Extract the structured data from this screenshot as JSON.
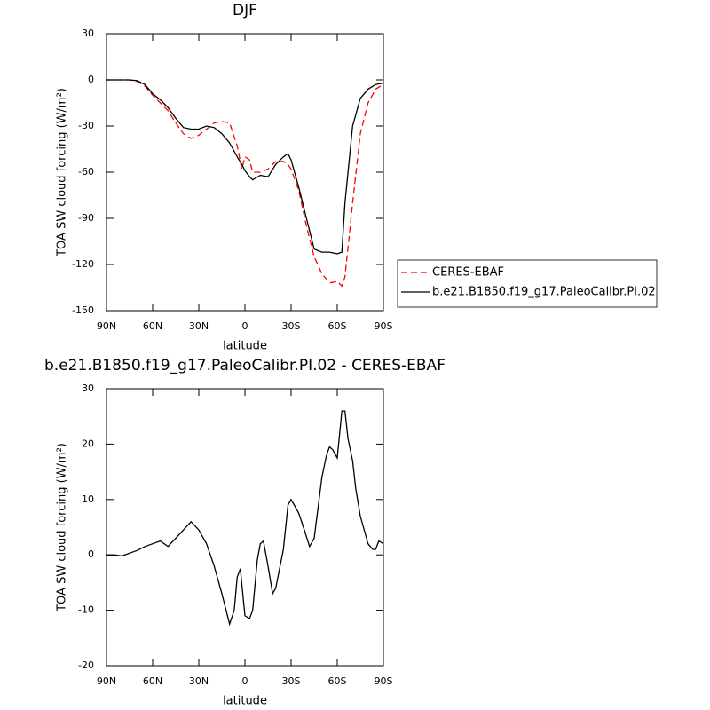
{
  "chart_data": [
    {
      "type": "line",
      "title": "DJF",
      "xlabel": "latitude",
      "ylabel": "TOA SW cloud forcing (W/m²)",
      "x": [
        90,
        80,
        75,
        70,
        65,
        60,
        55,
        50,
        45,
        40,
        35,
        30,
        25,
        20,
        15,
        10,
        5,
        2,
        0,
        -3,
        -5,
        -10,
        -15,
        -20,
        -25,
        -28,
        -30,
        -35,
        -40,
        -45,
        -50,
        -55,
        -60,
        -63,
        -65,
        -70,
        -75,
        -80,
        -85,
        -90
      ],
      "series": [
        {
          "name": "CERES-EBAF",
          "color": "#ff0000",
          "dash": true,
          "values": [
            0,
            0,
            0,
            -1,
            -4,
            -10,
            -15,
            -20,
            -28,
            -35,
            -38,
            -36,
            -32,
            -28,
            -27,
            -28,
            -43,
            -58,
            -50,
            -52,
            -60,
            -60,
            -58,
            -53,
            -53,
            -55,
            -58,
            -72,
            -95,
            -115,
            -126,
            -132,
            -131,
            -134,
            -128,
            -80,
            -35,
            -15,
            -6,
            -3
          ]
        },
        {
          "name": "b.e21.B1850.f19_g17.PaleoCalibr.PI.02",
          "color": "#000000",
          "dash": false,
          "values": [
            0,
            0,
            0,
            -0.5,
            -3,
            -9,
            -13,
            -18,
            -25,
            -31,
            -32,
            -32,
            -30,
            -31,
            -35,
            -41,
            -50,
            -55,
            -59,
            -63,
            -65,
            -62,
            -63,
            -55,
            -50,
            -48,
            -52,
            -70,
            -90,
            -110,
            -112,
            -112,
            -113,
            -112,
            -80,
            -30,
            -12,
            -6,
            -3,
            -2
          ]
        }
      ],
      "xlim": [
        90,
        -90
      ],
      "xticks": [
        {
          "value": 90,
          "label": "90N"
        },
        {
          "value": 60,
          "label": "60N"
        },
        {
          "value": 30,
          "label": "30N"
        },
        0,
        {
          "value": -30,
          "label": "30S"
        },
        {
          "value": -60,
          "label": "60S"
        },
        {
          "value": -90,
          "label": "90S"
        }
      ],
      "ylim": [
        -150,
        30
      ],
      "yticks": [
        -150,
        -120,
        -90,
        -60,
        -30,
        0,
        30
      ],
      "legend": "outside-right"
    },
    {
      "type": "line",
      "title": "b.e21.B1850.f19_g17.PaleoCalibr.PI.02 - CERES-EBAF",
      "xlabel": "latitude",
      "ylabel": "TOA SW cloud forcing (W/m²)",
      "x": [
        90,
        85,
        80,
        75,
        70,
        65,
        60,
        55,
        50,
        45,
        40,
        35,
        30,
        25,
        20,
        15,
        10,
        7,
        5,
        3,
        0,
        -3,
        -5,
        -8,
        -10,
        -12,
        -15,
        -18,
        -20,
        -25,
        -28,
        -30,
        -32,
        -35,
        -38,
        -42,
        -45,
        -50,
        -53,
        -55,
        -57,
        -60,
        -63,
        -65,
        -67,
        -70,
        -72,
        -75,
        -80,
        -83,
        -85,
        -87,
        -90
      ],
      "values": [
        0,
        0,
        -0.2,
        0.3,
        0.8,
        1.5,
        2,
        2.5,
        1.5,
        3,
        4.5,
        6,
        4.5,
        2,
        -2,
        -7,
        -12.5,
        -10,
        -4,
        -2.5,
        -11,
        -11.5,
        -10,
        -1,
        2,
        2.5,
        -2,
        -7,
        -6,
        1,
        9,
        10,
        9,
        7.5,
        5,
        1.5,
        3,
        14,
        18,
        19.5,
        19,
        17.5,
        26,
        26,
        21,
        17,
        12,
        7,
        2,
        1,
        1,
        2.5,
        2
      ],
      "color": "#000000",
      "xlim": [
        90,
        -90
      ],
      "xticks": [
        {
          "value": 90,
          "label": "90N"
        },
        {
          "value": 60,
          "label": "60N"
        },
        {
          "value": 30,
          "label": "30N"
        },
        0,
        {
          "value": -30,
          "label": "30S"
        },
        {
          "value": -60,
          "label": "60S"
        },
        {
          "value": -90,
          "label": "90S"
        }
      ],
      "ylim": [
        -20,
        30
      ],
      "yticks": [
        -20,
        -10,
        0,
        10,
        20,
        30
      ]
    }
  ]
}
